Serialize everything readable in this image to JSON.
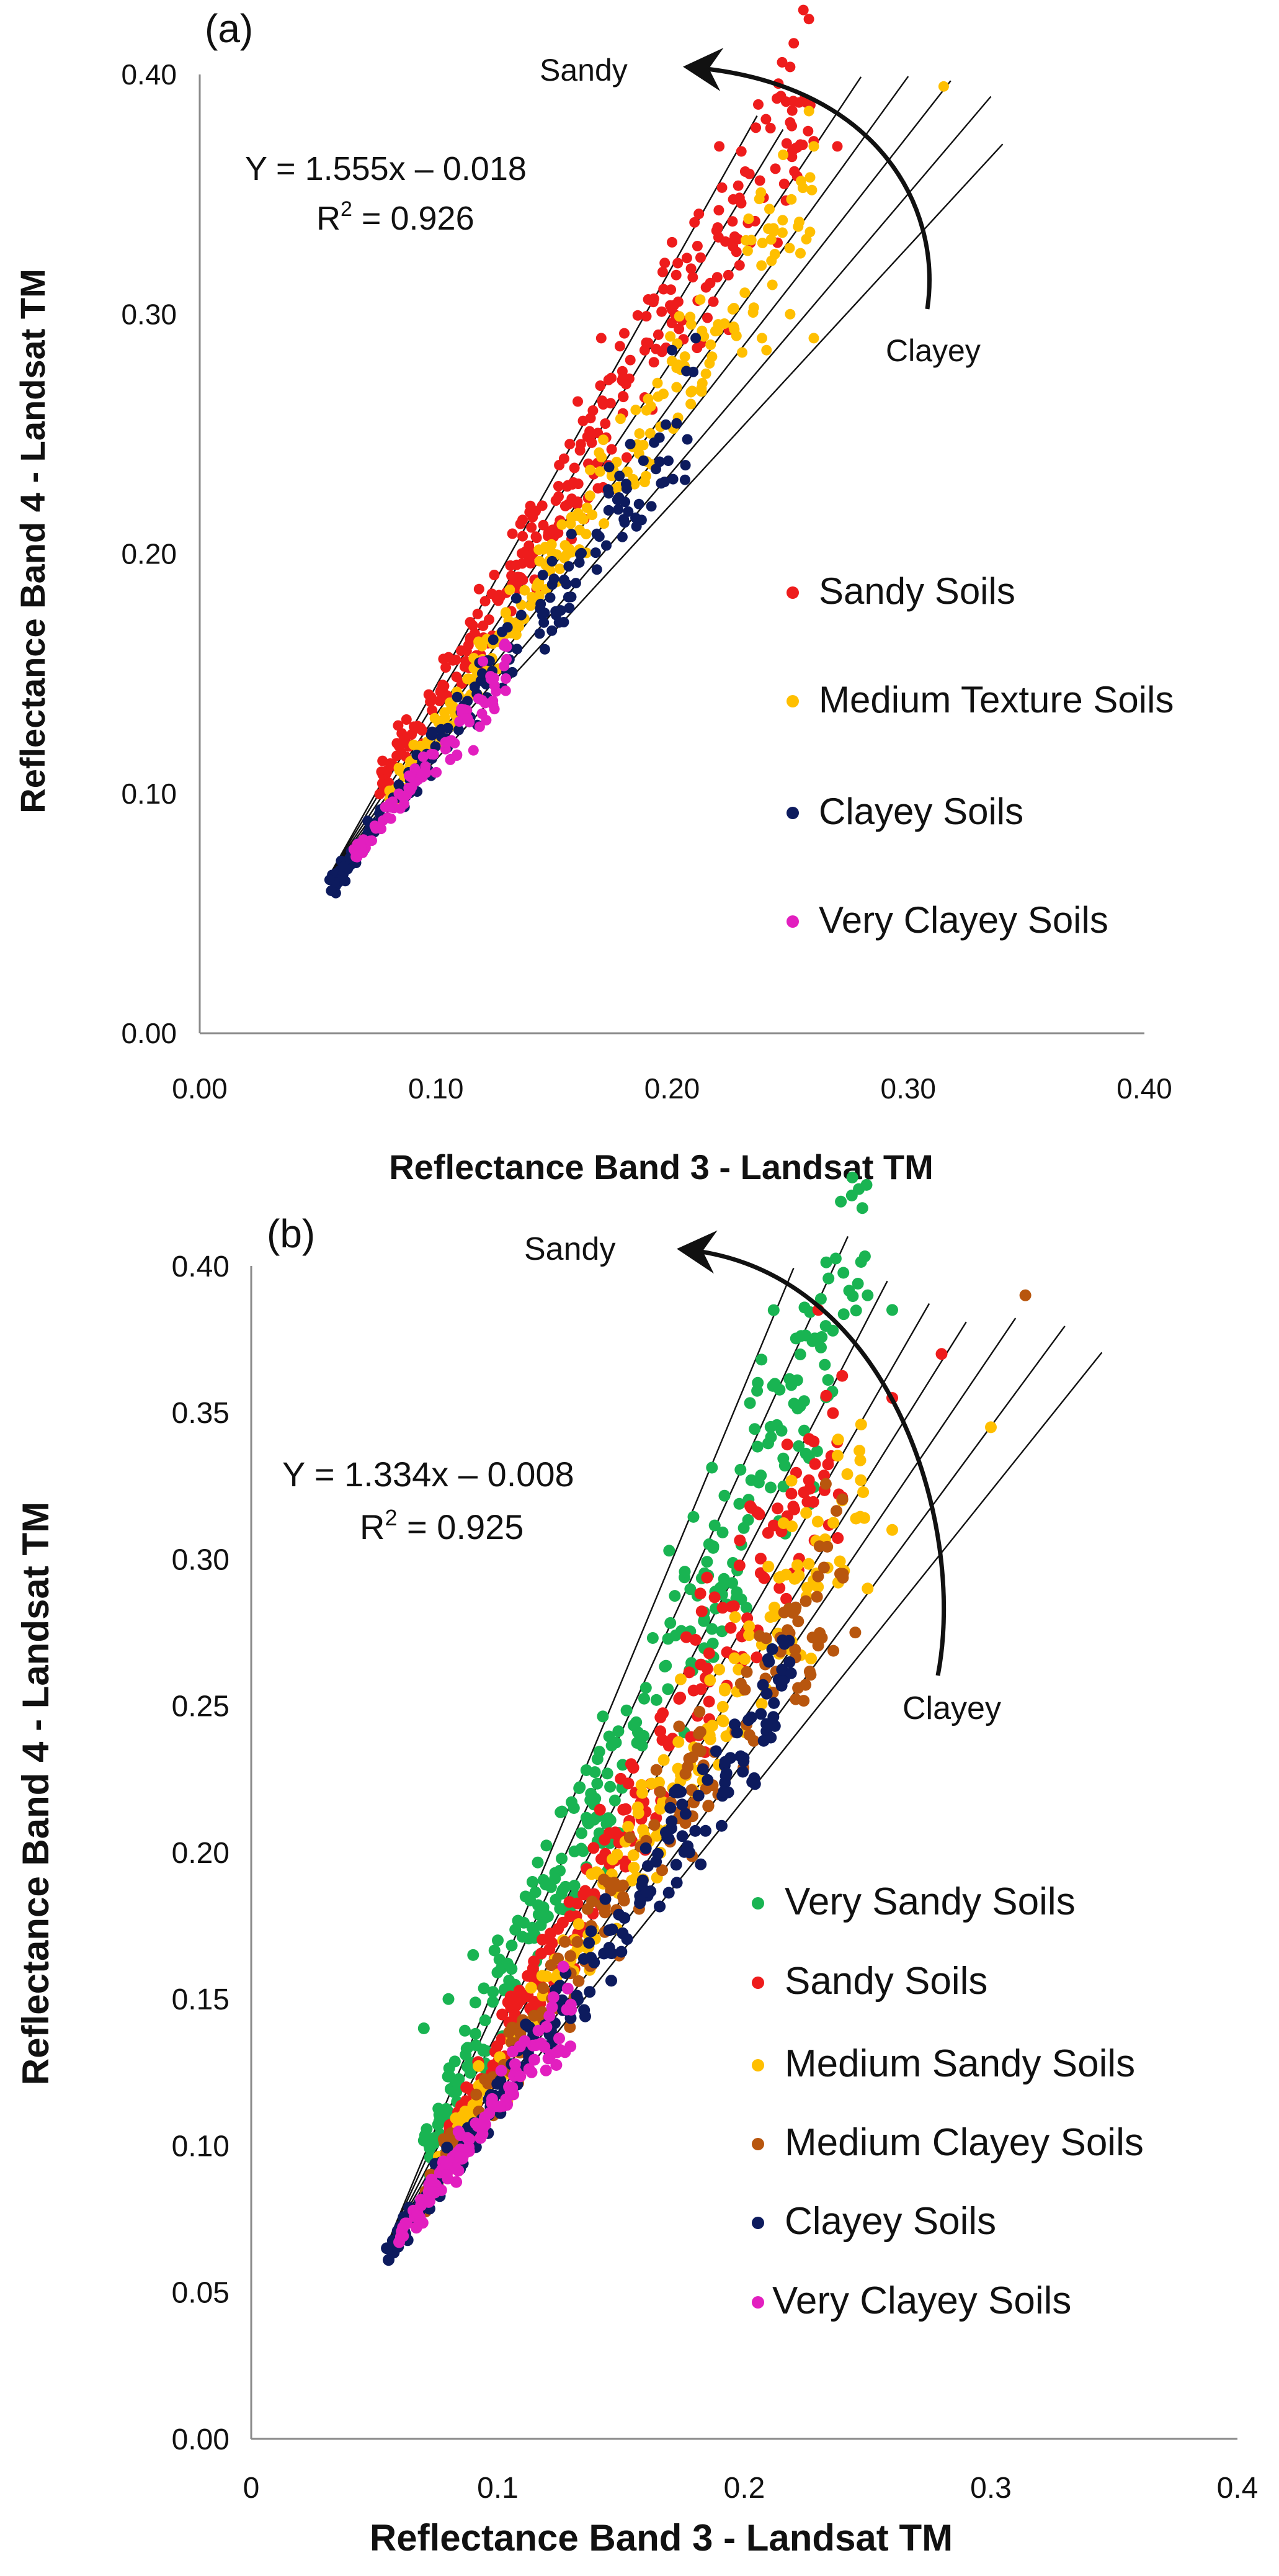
{
  "chart_data": [
    {
      "type": "scatter",
      "panel_label": "(a)",
      "xlabel": "Reflectance Band 3 - Landsat TM",
      "ylabel": "Reflectance Band 4 - Landsat TM",
      "xlim": [
        0,
        0.4
      ],
      "ylim": [
        0,
        0.4
      ],
      "x_ticks": [
        "0.00",
        "0.10",
        "0.20",
        "0.30",
        "0.40"
      ],
      "y_ticks": [
        "0.00",
        "0.10",
        "0.20",
        "0.30",
        "0.40"
      ],
      "equation": "Y = 1.555x – 0.018",
      "r2_label": "R",
      "r2_sup": "2",
      "r2_value": " = 0.926",
      "annotation_sandy": "Sandy",
      "annotation_clayey": "Clayey",
      "legend_position": "right",
      "series": [
        {
          "name": "Sandy Soils",
          "color": "#ee1c1c",
          "slope": 1.58,
          "intercept": -0.018,
          "spread": 0.01,
          "xrange": [
            0.075,
            0.26
          ],
          "count": 300,
          "seed": 11,
          "extra": [
            [
              0.12,
              0.17
            ],
            [
              0.14,
              0.22
            ],
            [
              0.17,
              0.29
            ],
            [
              0.2,
              0.33
            ],
            [
              0.22,
              0.37
            ],
            [
              0.25,
              0.38
            ],
            [
              0.27,
              0.37
            ]
          ]
        },
        {
          "name": "Medium Texture Soils",
          "color": "#ffbf00",
          "slope": 1.42,
          "intercept": -0.016,
          "spread": 0.008,
          "xrange": [
            0.08,
            0.26
          ],
          "count": 240,
          "seed": 23,
          "extra": [
            [
              0.315,
              0.395
            ],
            [
              0.26,
              0.37
            ],
            [
              0.25,
              0.3
            ],
            [
              0.26,
              0.29
            ],
            [
              0.24,
              0.285
            ]
          ]
        },
        {
          "name": "Clayey Soils",
          "color": "#0d1b5e",
          "slope": 1.27,
          "intercept": -0.009,
          "spread": 0.006,
          "xrange": [
            0.055,
            0.21
          ],
          "count": 190,
          "seed": 37,
          "extra": [
            [
              0.055,
              0.064
            ],
            [
              0.2,
              0.285
            ],
            [
              0.21,
              0.29
            ]
          ]
        },
        {
          "name": "Very Clayey Soils",
          "color": "#e21fbf",
          "slope": 1.2,
          "intercept": -0.004,
          "spread": 0.004,
          "xrange": [
            0.065,
            0.13
          ],
          "count": 90,
          "seed": 51,
          "extra": []
        }
      ],
      "ref_lines": [
        {
          "slope": 1.75,
          "x_end": 0.236
        },
        {
          "slope": 1.62,
          "x_end": 0.247
        },
        {
          "slope": 1.48,
          "x_end": 0.28
        },
        {
          "slope": 1.36,
          "x_end": 0.3
        },
        {
          "slope": 1.26,
          "x_end": 0.318
        },
        {
          "slope": 1.16,
          "x_end": 0.335
        },
        {
          "slope": 1.07,
          "x_end": 0.34
        }
      ]
    },
    {
      "type": "scatter",
      "panel_label": "(b)",
      "xlabel": "Reflectance Band 3 - Landsat  TM",
      "ylabel": "Reflectance Band  4  - Landsat TM",
      "xlim": [
        0,
        0.4
      ],
      "ylim": [
        0,
        0.4
      ],
      "x_ticks": [
        "0",
        "0.1",
        "0.2",
        "0.3",
        "0.4"
      ],
      "y_ticks": [
        "0.00",
        "0.05",
        "0.10",
        "0.15",
        "0.20",
        "0.25",
        "0.30",
        "0.35",
        "0.40"
      ],
      "equation": "Y = 1.334x – 0.008",
      "r2_label": "R",
      "r2_sup": "2",
      "r2_value": " = 0.925",
      "annotation_sandy": "Sandy",
      "annotation_clayey": "Clayey",
      "legend_position": "right",
      "series": [
        {
          "name": "Very Sandy Soils",
          "color": "#19b452",
          "slope": 1.72,
          "intercept": -0.024,
          "spread": 0.012,
          "xrange": [
            0.07,
            0.25
          ],
          "count": 300,
          "seed": 61,
          "extra": [
            [
              0.07,
              0.14
            ],
            [
              0.08,
              0.15
            ],
            [
              0.09,
              0.165
            ],
            [
              0.1,
              0.17
            ],
            [
              0.26,
              0.385
            ],
            [
              0.25,
              0.39
            ]
          ]
        },
        {
          "name": "Sandy Soils",
          "color": "#ee1c1c",
          "slope": 1.52,
          "intercept": -0.02,
          "spread": 0.01,
          "xrange": [
            0.08,
            0.24
          ],
          "count": 220,
          "seed": 73,
          "extra": [
            [
              0.28,
              0.37
            ],
            [
              0.26,
              0.355
            ],
            [
              0.23,
              0.385
            ]
          ]
        },
        {
          "name": "Medium Sandy Soils",
          "color": "#ffbf00",
          "slope": 1.36,
          "intercept": -0.01,
          "spread": 0.009,
          "xrange": [
            0.075,
            0.25
          ],
          "count": 200,
          "seed": 83,
          "extra": [
            [
              0.3,
              0.345
            ],
            [
              0.26,
              0.31
            ],
            [
              0.25,
              0.29
            ]
          ]
        },
        {
          "name": "Medium Clayey Soils",
          "color": "#b8560e",
          "slope": 1.28,
          "intercept": -0.006,
          "spread": 0.008,
          "xrange": [
            0.07,
            0.24
          ],
          "count": 180,
          "seed": 97,
          "extra": [
            [
              0.314,
              0.39
            ],
            [
              0.24,
              0.295
            ],
            [
              0.245,
              0.275
            ]
          ]
        },
        {
          "name": "Clayey Soils",
          "color": "#0d1b5e",
          "slope": 1.2,
          "intercept": -0.003,
          "spread": 0.006,
          "xrange": [
            0.055,
            0.22
          ],
          "count": 200,
          "seed": 109,
          "extra": [
            [
              0.055,
              0.065
            ],
            [
              0.21,
              0.265
            ]
          ]
        },
        {
          "name": "Very Clayey Soils",
          "color": "#e21fbf",
          "slope": 1.15,
          "intercept": 0.0,
          "spread": 0.004,
          "xrange": [
            0.06,
            0.13
          ],
          "count": 110,
          "seed": 127,
          "extra": []
        }
      ],
      "ref_lines": [
        {
          "slope": 2.02,
          "x_end": 0.22
        },
        {
          "slope": 1.84,
          "x_end": 0.242
        },
        {
          "slope": 1.62,
          "x_end": 0.258
        },
        {
          "slope": 1.46,
          "x_end": 0.275
        },
        {
          "slope": 1.34,
          "x_end": 0.29
        },
        {
          "slope": 1.24,
          "x_end": 0.31
        },
        {
          "slope": 1.14,
          "x_end": 0.33
        },
        {
          "slope": 1.05,
          "x_end": 0.345
        }
      ]
    }
  ]
}
